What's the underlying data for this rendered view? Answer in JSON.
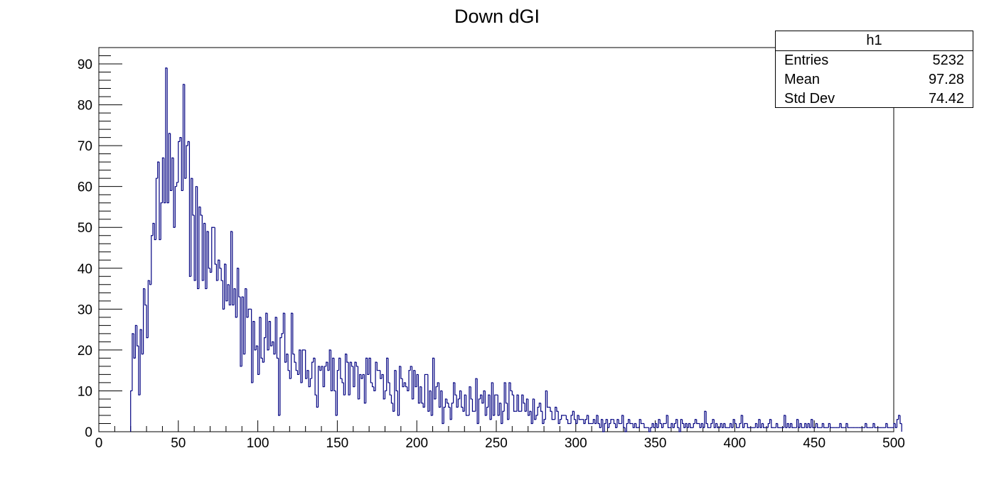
{
  "chart_data": {
    "type": "histogram",
    "title": "Down dGI",
    "xlabel": "",
    "ylabel": "",
    "xlim": [
      0,
      500
    ],
    "ylim": [
      0,
      94
    ],
    "x_ticks": [
      "0",
      "50",
      "100",
      "150",
      "200",
      "250",
      "300",
      "350",
      "400",
      "450",
      "500"
    ],
    "y_ticks": [
      "0",
      "10",
      "20",
      "30",
      "40",
      "50",
      "60",
      "70",
      "80",
      "90"
    ],
    "bin_width": 1,
    "first_bin_low_edge": 20,
    "line_color": "#000080",
    "grid": false,
    "counts": [
      10,
      24,
      18,
      26,
      21,
      9,
      25,
      19,
      35,
      31,
      23,
      37,
      36,
      48,
      51,
      47,
      62,
      66,
      47,
      56,
      67,
      56,
      89,
      56,
      73,
      59,
      67,
      50,
      60,
      61,
      71,
      72,
      59,
      85,
      62,
      70,
      71,
      38,
      62,
      53,
      37,
      60,
      35,
      55,
      53,
      37,
      51,
      35,
      49,
      40,
      39,
      50,
      50,
      41,
      37,
      42,
      40,
      37,
      30,
      41,
      32,
      36,
      31,
      49,
      31,
      35,
      28,
      40,
      33,
      16,
      33,
      19,
      35,
      28,
      30,
      30,
      12,
      27,
      20,
      21,
      14,
      28,
      18,
      17,
      23,
      29,
      20,
      27,
      21,
      22,
      19,
      28,
      18,
      4,
      23,
      24,
      29,
      17,
      19,
      15,
      13,
      29,
      19,
      17,
      15,
      14,
      20,
      12,
      20,
      20,
      13,
      15,
      11,
      13,
      17,
      18,
      9,
      6,
      16,
      15,
      16,
      11,
      16,
      17,
      15,
      20,
      10,
      18,
      10,
      4,
      15,
      18,
      13,
      12,
      9,
      19,
      17,
      9,
      17,
      16,
      11,
      17,
      16,
      8,
      14,
      13,
      14,
      7,
      18,
      14,
      18,
      12,
      11,
      10,
      17,
      15,
      15,
      13,
      14,
      8,
      10,
      18,
      12,
      9,
      7,
      5,
      15,
      10,
      4,
      16,
      13,
      11,
      12,
      11,
      10,
      15,
      16,
      8,
      15,
      11,
      14,
      7,
      11,
      7,
      6,
      14,
      14,
      5,
      10,
      4,
      18,
      8,
      11,
      12,
      6,
      10,
      2,
      6,
      8,
      7,
      6,
      3,
      7,
      12,
      9,
      6,
      8,
      10,
      6,
      5,
      9,
      4,
      4,
      11,
      8,
      5,
      5,
      13,
      2,
      8,
      9,
      7,
      10,
      4,
      6,
      9,
      3,
      12,
      4,
      9,
      9,
      4,
      7,
      2,
      5,
      12,
      7,
      3,
      12,
      10,
      9,
      5,
      5,
      9,
      5,
      5,
      9,
      7,
      5,
      8,
      4,
      5,
      2,
      8,
      3,
      4,
      6,
      7,
      5,
      2,
      3,
      10,
      6,
      6,
      5,
      3,
      3,
      6,
      5,
      2,
      3,
      4,
      4,
      4,
      3,
      2,
      2,
      4,
      5,
      3,
      2,
      4,
      3,
      3,
      3,
      2,
      3,
      4,
      2,
      2,
      2,
      3,
      2,
      4,
      2,
      1,
      3,
      0,
      2,
      3,
      1,
      2,
      3,
      3,
      2,
      1,
      3,
      2,
      2,
      4,
      1,
      0,
      2,
      3,
      2,
      2,
      1,
      2,
      1,
      1,
      3,
      2,
      2,
      1,
      1,
      1,
      0,
      1,
      2,
      1,
      2,
      1,
      3,
      2,
      1,
      2,
      2,
      4,
      1,
      1,
      2,
      1,
      2,
      3,
      1,
      0,
      3,
      2,
      1,
      2,
      1,
      2,
      1,
      1,
      2,
      3,
      2,
      2,
      1,
      2,
      1,
      5,
      2,
      1,
      1,
      2,
      3,
      1,
      2,
      1,
      1,
      2,
      1,
      2,
      1,
      1,
      1,
      2,
      1,
      3,
      2,
      1,
      1,
      2,
      4,
      1,
      2,
      2,
      1,
      1,
      1,
      1,
      1,
      2,
      1,
      3,
      1,
      2,
      1,
      1,
      1,
      2,
      3,
      1,
      1,
      1,
      2,
      1,
      1,
      1,
      1,
      4,
      1,
      2,
      1,
      2,
      1,
      1,
      1,
      3,
      1,
      2,
      1,
      1,
      2,
      1,
      2,
      1,
      3,
      1,
      1,
      2,
      1,
      1,
      1,
      2,
      1,
      1,
      1,
      2,
      1,
      1,
      1,
      1,
      1,
      1,
      2,
      1,
      1,
      1,
      2,
      1,
      1,
      1,
      1,
      1,
      1,
      1,
      1,
      1,
      1,
      1,
      2,
      1,
      1,
      1,
      1,
      2,
      1,
      1,
      1,
      1,
      1,
      1,
      1,
      2,
      1,
      1,
      1,
      1,
      2,
      1,
      3,
      4,
      2
    ]
  },
  "stats": {
    "name": "h1",
    "rows": [
      {
        "label": "Entries",
        "value": "5232"
      },
      {
        "label": "Mean",
        "value": "97.28"
      },
      {
        "label": "Std Dev",
        "value": "74.42"
      }
    ]
  }
}
